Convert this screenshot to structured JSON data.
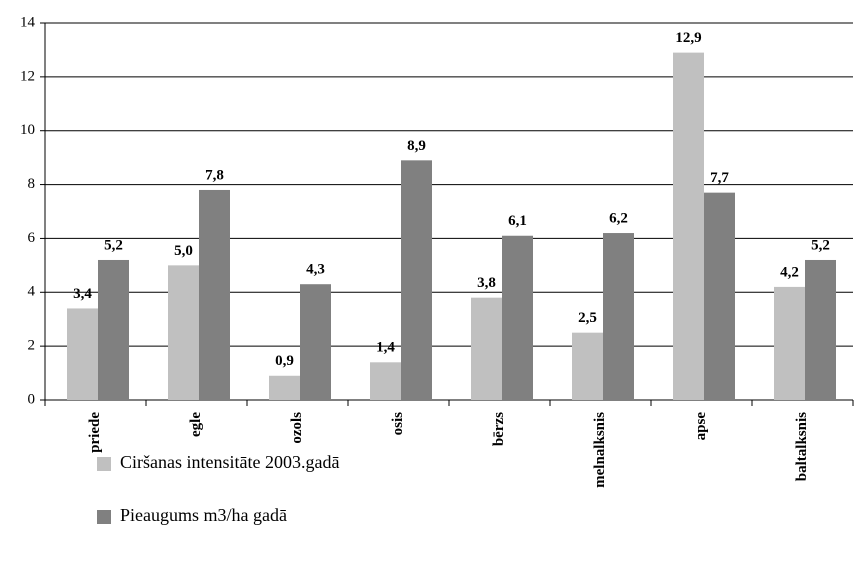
{
  "chart_data": {
    "type": "bar",
    "categories": [
      "priede",
      "egle",
      "ozols",
      "osis",
      "bērzs",
      "melnalksnis",
      "apse",
      "baltalksnis"
    ],
    "series": [
      {
        "name": "Ciršanas intensitāte 2003.gadā",
        "color": "#c0c0c0",
        "values": [
          3.4,
          5.0,
          0.9,
          1.4,
          3.8,
          2.5,
          12.9,
          4.2
        ],
        "value_labels": [
          "3,4",
          "5,0",
          "0,9",
          "1,4",
          "3,8",
          "2,5",
          "12,9",
          "4,2"
        ]
      },
      {
        "name": "Pieaugums m3/ha gadā",
        "color": "#808080",
        "values": [
          5.2,
          7.8,
          4.3,
          8.9,
          6.1,
          6.2,
          7.7,
          5.2
        ],
        "value_labels": [
          "5,2",
          "7,8",
          "4,3",
          "8,9",
          "6,1",
          "6,2",
          "7,7",
          "5,2"
        ]
      }
    ],
    "ylim": [
      0,
      14
    ],
    "yticks": [
      0,
      2,
      4,
      6,
      8,
      10,
      12,
      14
    ],
    "grid": true
  }
}
